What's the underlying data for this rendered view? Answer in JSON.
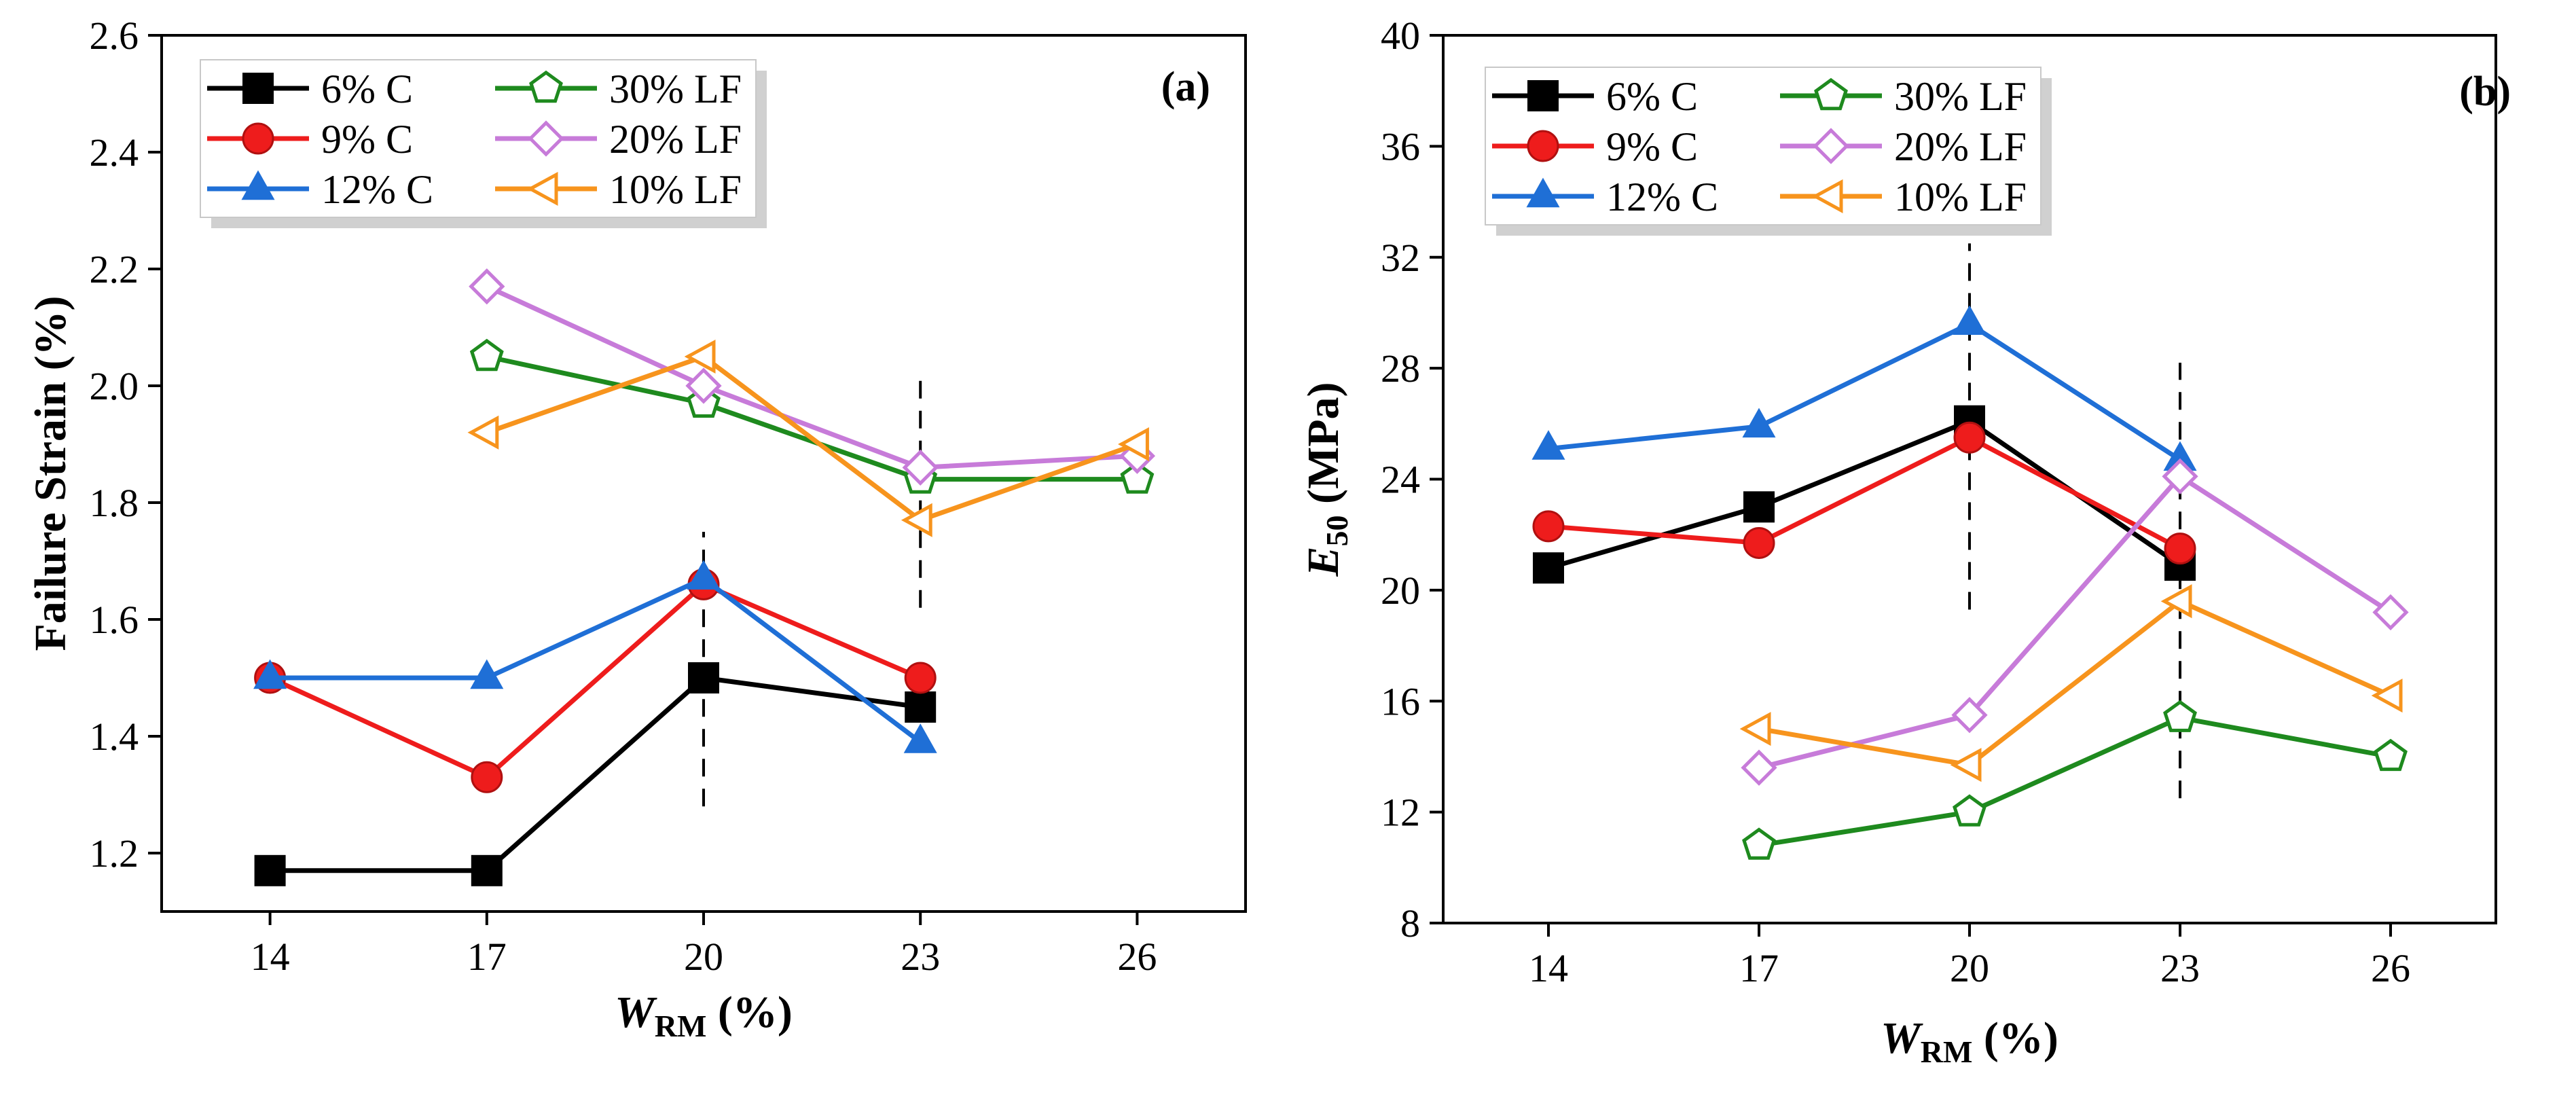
{
  "figure": {
    "colors": {
      "6% C": "#000000",
      "9% C": "#ee1c1c",
      "12% C": "#1f6fd6",
      "30% LF": "#1e8a1e",
      "20% LF": "#c77bd9",
      "10% LF": "#f7941d"
    }
  },
  "chart_data": [
    {
      "id": "a",
      "type": "line",
      "panel_label": "(a)",
      "ylabel": "Failure Strain (%)",
      "xlabel_main": "W",
      "xlabel_sub": "RM",
      "xlabel_unit": " (%)",
      "xlim": [
        12.5,
        27.5
      ],
      "ylim": [
        1.1,
        2.6
      ],
      "xticks": [
        14,
        17,
        20,
        23,
        26
      ],
      "yticks": [
        1.2,
        1.4,
        1.6,
        1.8,
        2.0,
        2.2,
        2.4,
        2.6
      ],
      "ytick_labels": [
        "1.2",
        "1.4",
        "1.6",
        "1.8",
        "2.0",
        "2.2",
        "2.4",
        "2.6"
      ],
      "legend": [
        "6%  C",
        "9%  C",
        "12% C",
        "30% LF",
        "20% LF",
        "10% LF"
      ],
      "series": [
        {
          "name": "6%  C",
          "key": "6% C",
          "marker": "square",
          "x": [
            14,
            17,
            20,
            23
          ],
          "y": [
            1.17,
            1.17,
            1.5,
            1.45
          ]
        },
        {
          "name": "9%  C",
          "key": "9% C",
          "marker": "circle",
          "x": [
            14,
            17,
            20,
            23
          ],
          "y": [
            1.5,
            1.33,
            1.66,
            1.5
          ]
        },
        {
          "name": "12% C",
          "key": "12% C",
          "marker": "triangle-up",
          "x": [
            14,
            17,
            20,
            23
          ],
          "y": [
            1.5,
            1.5,
            1.67,
            1.39
          ]
        },
        {
          "name": "30% LF",
          "key": "30% LF",
          "marker": "pentagon",
          "x": [
            17,
            20,
            23,
            26
          ],
          "y": [
            2.05,
            1.97,
            1.84,
            1.84
          ]
        },
        {
          "name": "20% LF",
          "key": "20% LF",
          "marker": "diamond",
          "x": [
            17,
            20,
            23,
            26
          ],
          "y": [
            2.17,
            2.0,
            1.86,
            1.88
          ]
        },
        {
          "name": "10% LF",
          "key": "10% LF",
          "marker": "triangle-left",
          "x": [
            17,
            20,
            23,
            26
          ],
          "y": [
            1.92,
            2.05,
            1.77,
            1.9
          ]
        }
      ],
      "dashed_lines": [
        {
          "x": 20,
          "y_from": 1.28,
          "y_to": 1.75
        },
        {
          "x": 23,
          "y_from": 1.62,
          "y_to": 2.02
        }
      ]
    },
    {
      "id": "b",
      "type": "line",
      "panel_label": "(b)",
      "ylabel_main": "E",
      "ylabel_sub": "50",
      "ylabel_unit": " (MPa)",
      "xlabel_main": "W",
      "xlabel_sub": "RM",
      "xlabel_unit": " (%)",
      "xlim": [
        12.5,
        27.5
      ],
      "ylim": [
        8,
        40
      ],
      "xticks": [
        14,
        17,
        20,
        23,
        26
      ],
      "yticks": [
        8,
        12,
        16,
        20,
        24,
        28,
        32,
        36,
        40
      ],
      "ytick_labels": [
        "8",
        "12",
        "16",
        "20",
        "24",
        "28",
        "32",
        "36",
        "40"
      ],
      "legend": [
        "6%  C",
        "9%  C",
        "12% C",
        "30% LF",
        "20% LF",
        "10% LF"
      ],
      "series": [
        {
          "name": "6%  C",
          "key": "6% C",
          "marker": "square",
          "x": [
            14,
            17,
            20,
            23
          ],
          "y": [
            20.8,
            23.0,
            26.1,
            20.9
          ]
        },
        {
          "name": "9%  C",
          "key": "9% C",
          "marker": "circle",
          "x": [
            14,
            17,
            20,
            23
          ],
          "y": [
            22.3,
            21.7,
            25.5,
            21.5
          ]
        },
        {
          "name": "12% C",
          "key": "12% C",
          "marker": "triangle-up",
          "x": [
            14,
            17,
            20,
            23
          ],
          "y": [
            25.1,
            25.9,
            29.6,
            24.7
          ]
        },
        {
          "name": "30% LF",
          "key": "30% LF",
          "marker": "pentagon",
          "x": [
            17,
            20,
            23,
            26
          ],
          "y": [
            10.8,
            12.0,
            15.4,
            14.0
          ]
        },
        {
          "name": "20% LF",
          "key": "20% LF",
          "marker": "diamond",
          "x": [
            17,
            20,
            23,
            26
          ],
          "y": [
            13.6,
            15.5,
            24.1,
            19.2
          ]
        },
        {
          "name": "10% LF",
          "key": "10% LF",
          "marker": "triangle-left",
          "x": [
            17,
            20,
            23,
            26
          ],
          "y": [
            15.0,
            13.7,
            19.6,
            16.2
          ]
        }
      ],
      "dashed_lines": [
        {
          "x": 20,
          "y_from": 19.3,
          "y_to": 32.5
        },
        {
          "x": 23,
          "y_from": 12.5,
          "y_to": 28.2
        }
      ]
    }
  ]
}
